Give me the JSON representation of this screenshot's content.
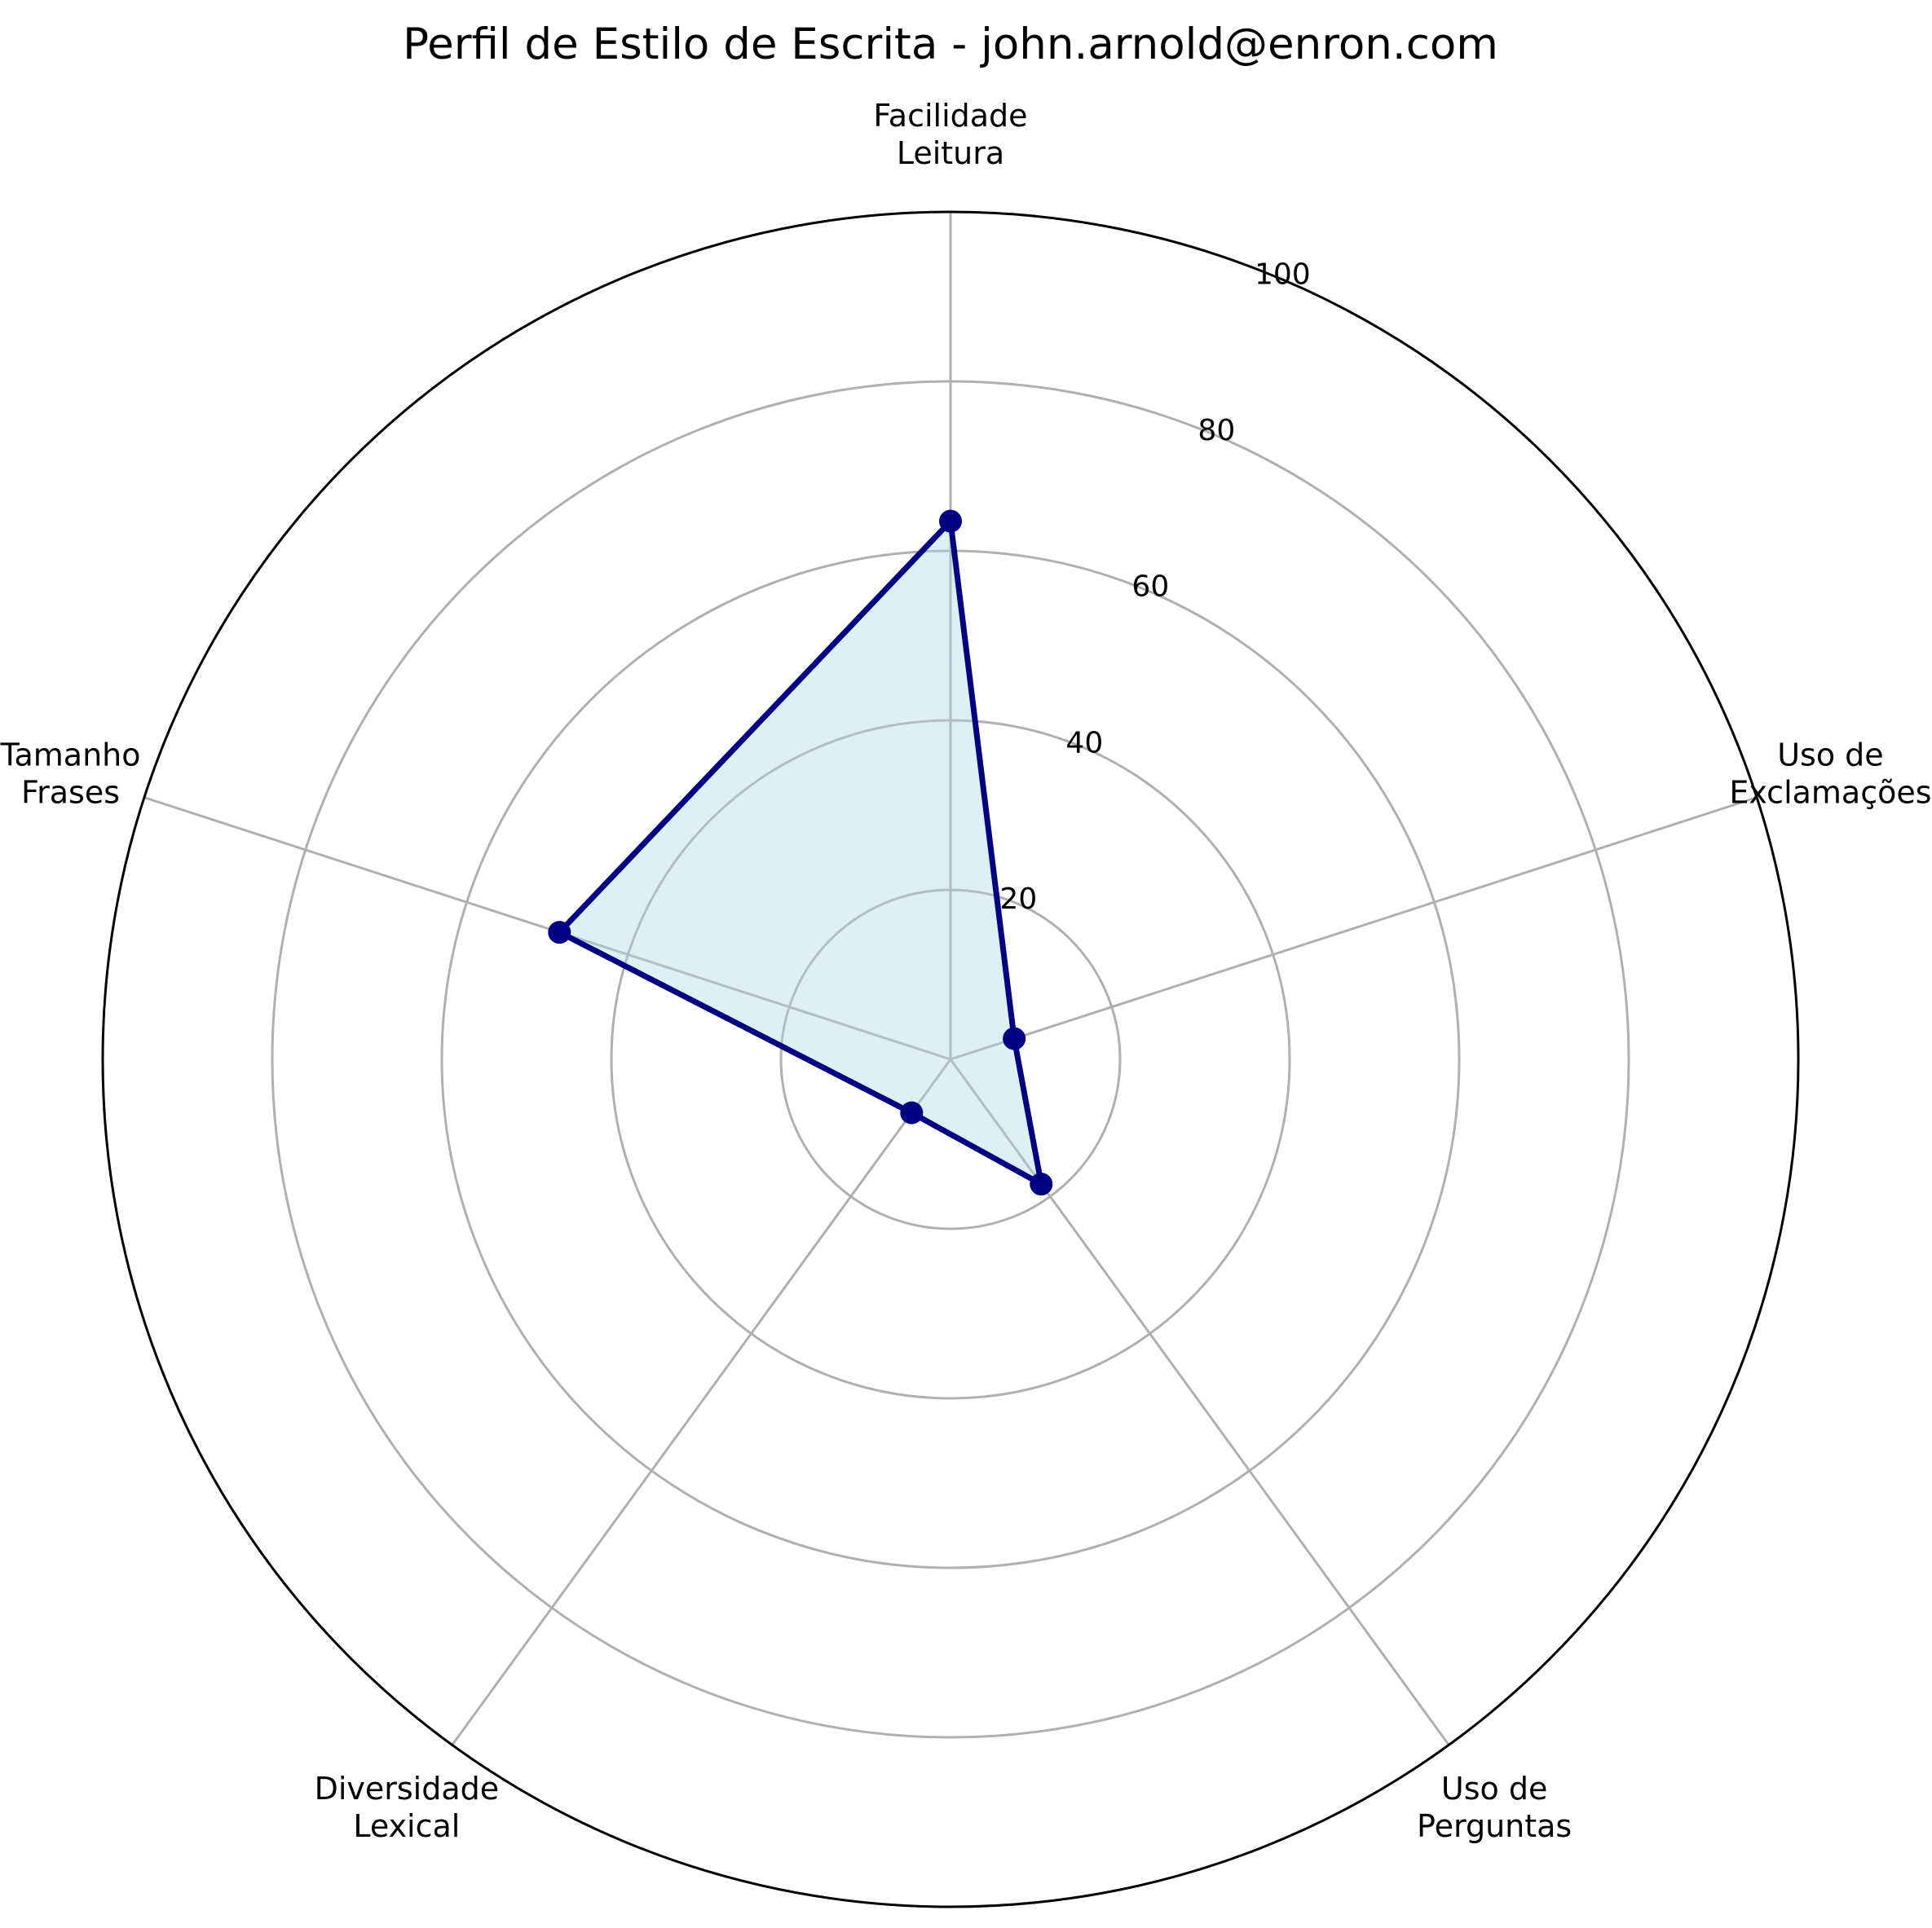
{
  "chart_data": {
    "type": "radar",
    "title": "Perfil de Estilo de Escrita - john.arnold@enron.com",
    "categories": [
      [
        "Facilidade",
        "Leitura"
      ],
      [
        "Uso de",
        "Exclamações"
      ],
      [
        "Uso de",
        "Perguntas"
      ],
      [
        "Diversidade",
        "Lexical"
      ],
      [
        "Tamanho",
        "Frases"
      ]
    ],
    "series": [
      {
        "values": [
          63.5,
          7.9,
          18.2,
          7.8,
          48.5
        ]
      }
    ],
    "rlim": [
      0,
      100
    ],
    "rticks": [
      20,
      40,
      60,
      80,
      100
    ],
    "grid": true,
    "colors": {
      "line": "#000080",
      "fill": "#add8e6",
      "grid": "#b0b0b0",
      "outer_ring": "#000000"
    }
  }
}
